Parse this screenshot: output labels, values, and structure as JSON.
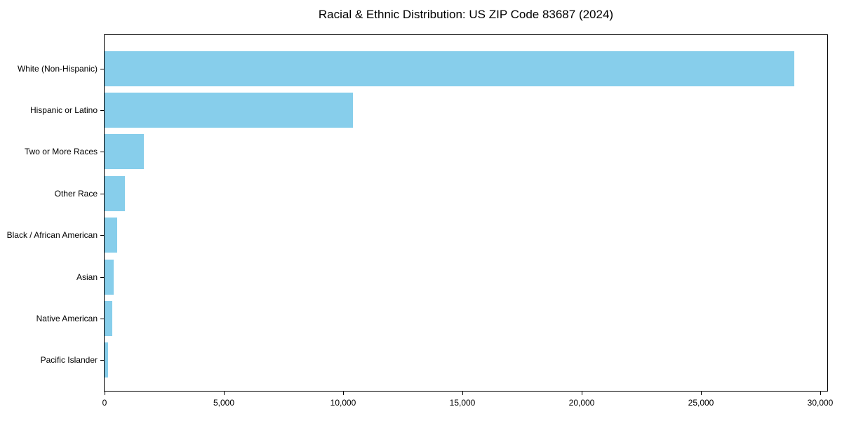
{
  "title": "Racial & Ethnic Distribution: US ZIP Code 83687 (2024)",
  "colors": {
    "bar": "#87CEEB",
    "axis": "#000000",
    "text": "#000000",
    "background": "#FFFFFF"
  },
  "chart_data": {
    "type": "bar",
    "orientation": "horizontal",
    "title": "Racial & Ethnic Distribution: US ZIP Code 83687 (2024)",
    "categories": [
      "White (Non-Hispanic)",
      "Hispanic or Latino",
      "Two or More Races",
      "Other Race",
      "Black / African American",
      "Asian",
      "Native American",
      "Pacific Islander"
    ],
    "values": [
      28900,
      10400,
      1650,
      850,
      520,
      380,
      310,
      150
    ],
    "xlabel": "",
    "ylabel": "",
    "xlim": [
      0,
      30350
    ],
    "xticks": [
      0,
      5000,
      10000,
      15000,
      20000,
      25000,
      30000
    ],
    "xtick_labels": [
      "0",
      "5,000",
      "10,000",
      "15,000",
      "20,000",
      "25,000",
      "30,000"
    ],
    "grid": false,
    "legend": null,
    "bar_color": "#87CEEB",
    "frame": "full-box"
  }
}
